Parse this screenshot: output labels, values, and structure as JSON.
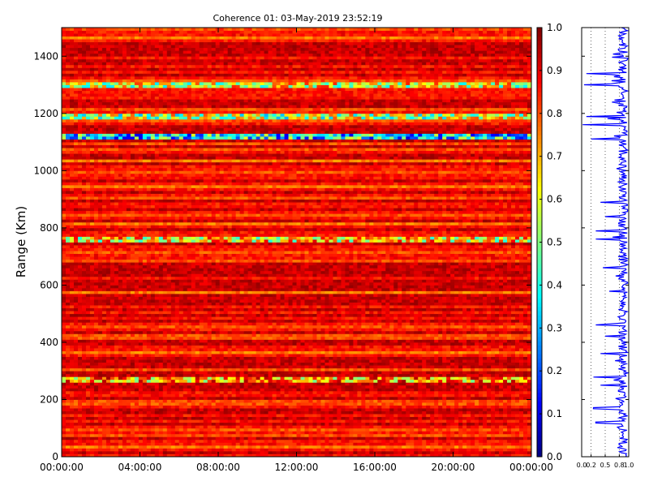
{
  "chart_data": {
    "type": "heatmap",
    "title": "Coherence 01: 03-May-2019 23:52:19",
    "xlabel": "",
    "ylabel": "Range (Km)",
    "x_ticks": [
      "00:00:00",
      "04:00:00",
      "08:00:00",
      "12:00:00",
      "16:00:00",
      "20:00:00",
      "00:00:00"
    ],
    "y_ticks": [
      0,
      200,
      400,
      600,
      800,
      1000,
      1200,
      1400
    ],
    "ylim": [
      0,
      1500
    ],
    "colorbar": {
      "colormap": "jet",
      "range": [
        0.0,
        1.0
      ],
      "ticks": [
        "0.0",
        "0.1",
        "0.2",
        "0.3",
        "0.4",
        "0.5",
        "0.6",
        "0.7",
        "0.8",
        "0.9",
        "1.0"
      ]
    },
    "profile_panel": {
      "type": "line",
      "color": "#0000ff",
      "xlim": [
        0.0,
        1.0
      ],
      "x_ticks": [
        "0.0",
        "0.2",
        "0.5",
        "0.8",
        "1.0"
      ],
      "gridlines_x": [
        0.2,
        0.5,
        0.8
      ],
      "dips": [
        {
          "range_km": 1340,
          "value": 0.1
        },
        {
          "range_km": 1300,
          "value": 0.05
        },
        {
          "range_km": 1190,
          "value": 0.1
        },
        {
          "range_km": 1160,
          "value": 0.02
        },
        {
          "range_km": 1110,
          "value": 0.2
        },
        {
          "range_km": 890,
          "value": 0.4
        },
        {
          "range_km": 840,
          "value": 0.5
        },
        {
          "range_km": 790,
          "value": 0.3
        },
        {
          "range_km": 760,
          "value": 0.3
        },
        {
          "range_km": 660,
          "value": 0.45
        },
        {
          "range_km": 460,
          "value": 0.3
        },
        {
          "range_km": 420,
          "value": 0.5
        },
        {
          "range_km": 360,
          "value": 0.4
        },
        {
          "range_km": 280,
          "value": 0.25
        },
        {
          "range_km": 250,
          "value": 0.4
        },
        {
          "range_km": 170,
          "value": 0.25
        },
        {
          "range_km": 120,
          "value": 0.3
        }
      ]
    },
    "range_bands": [
      {
        "from_km": 1110,
        "to_km": 1125,
        "coherence": 0.35
      },
      {
        "from_km": 1180,
        "to_km": 1195,
        "coherence": 0.55
      },
      {
        "from_km": 1295,
        "to_km": 1310,
        "coherence": 0.6
      },
      {
        "from_km": 755,
        "to_km": 765,
        "coherence": 0.65
      },
      {
        "from_km": 260,
        "to_km": 280,
        "coherence": 0.72
      }
    ]
  }
}
